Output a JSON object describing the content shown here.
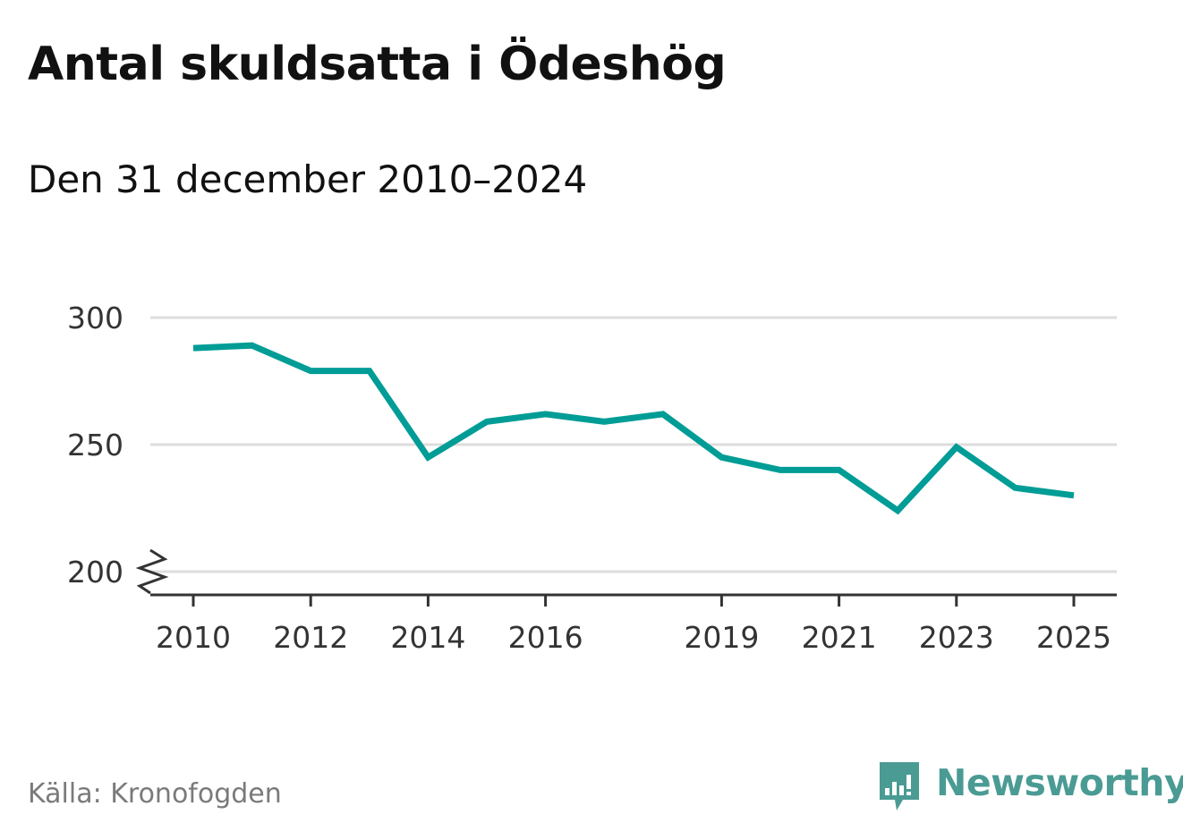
{
  "header": {
    "title": "Antal skuldsatta i Ödeshög",
    "subtitle": "Den 31 december 2010–2024"
  },
  "footer": {
    "source": "Källa: Kronofogden",
    "brand": "Newsworthy"
  },
  "colors": {
    "line": "#009c96",
    "grid": "#dddddd",
    "axis": "#333333",
    "tick_text": "#333333",
    "brand": "#4a9b94",
    "source_text": "#7a7a7a"
  },
  "chart_data": {
    "type": "line",
    "title": "Antal skuldsatta i Ödeshög",
    "subtitle": "Den 31 december 2010–2024",
    "xlabel": "",
    "ylabel": "",
    "x": [
      2010,
      2011,
      2012,
      2013,
      2014,
      2015,
      2016,
      2017,
      2018,
      2019,
      2020,
      2021,
      2022,
      2023,
      2024,
      2025
    ],
    "series": [
      {
        "name": "Antal skuldsatta",
        "values": [
          288,
          289,
          279,
          279,
          245,
          259,
          262,
          259,
          262,
          245,
          240,
          240,
          224,
          249,
          233,
          230
        ]
      }
    ],
    "x_ticks": [
      "2010",
      "2012",
      "2014",
      "2016",
      "2019",
      "2021",
      "2023",
      "2025"
    ],
    "y_ticks": [
      "200",
      "250",
      "300"
    ],
    "ylim": [
      200,
      300
    ],
    "xlim": [
      2010,
      2025
    ],
    "grid": true,
    "axis_break": true
  }
}
